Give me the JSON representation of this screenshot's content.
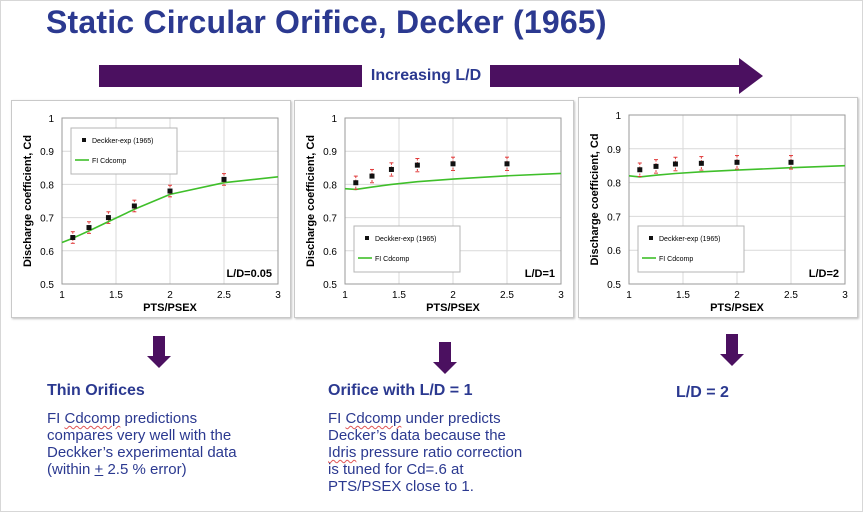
{
  "title": "Static Circular Orifice, Decker (1965)",
  "arrow_label": "Increasing L/D",
  "colors": {
    "title": "#2b3990",
    "arrow": "#4b1060",
    "fit_line": "#3fbf2a",
    "error_bar": "#e03a3a",
    "marker": "#111111"
  },
  "chart_data": [
    {
      "type": "scatter",
      "ylabel": "Discharge coefficient, Cd",
      "xlabel": "PTS/PSEX",
      "xlim": [
        1,
        3
      ],
      "ylim": [
        0.5,
        1
      ],
      "xticks": [
        "1",
        "1.5",
        "2",
        "2.5",
        "3"
      ],
      "yticks": [
        "0.5",
        "0.6",
        "0.7",
        "0.8",
        "0.9",
        "1"
      ],
      "grid": true,
      "legend_placement": "top-left",
      "annotation": "L/D=0.05",
      "series": [
        {
          "name": "Deckker-exp (1965)",
          "kind": "points",
          "x": [
            1.1,
            1.25,
            1.43,
            1.67,
            2.0,
            2.5
          ],
          "y": [
            0.64,
            0.67,
            0.7,
            0.735,
            0.78,
            0.815
          ],
          "error": 0.0175
        },
        {
          "name": "FI Cdcomp",
          "kind": "line",
          "x": [
            1.0,
            1.1,
            1.25,
            1.43,
            1.67,
            2.0,
            2.5,
            3.0
          ],
          "y": [
            0.625,
            0.638,
            0.66,
            0.688,
            0.725,
            0.77,
            0.805,
            0.823
          ]
        }
      ]
    },
    {
      "type": "scatter",
      "ylabel": "Discharge coefficient, Cd",
      "xlabel": "PTS/PSEX",
      "xlim": [
        1,
        3
      ],
      "ylim": [
        0.5,
        1
      ],
      "xticks": [
        "1",
        "1.5",
        "2",
        "2.5",
        "3"
      ],
      "yticks": [
        "0.5",
        "0.6",
        "0.7",
        "0.8",
        "0.9",
        "1"
      ],
      "grid": true,
      "legend_placement": "bottom-left",
      "annotation": "L/D=1",
      "series": [
        {
          "name": "Deckker-exp (1965)",
          "kind": "points",
          "x": [
            1.1,
            1.25,
            1.43,
            1.67,
            2.0,
            2.5
          ],
          "y": [
            0.805,
            0.825,
            0.845,
            0.858,
            0.862,
            0.862
          ],
          "error": 0.02
        },
        {
          "name": "FI Cdcomp",
          "kind": "line",
          "x": [
            1.0,
            1.1,
            1.25,
            1.43,
            1.67,
            2.0,
            2.5,
            3.0
          ],
          "y": [
            0.787,
            0.785,
            0.792,
            0.8,
            0.808,
            0.816,
            0.826,
            0.833
          ]
        }
      ]
    },
    {
      "type": "scatter",
      "ylabel": "Discharge coefficient, Cd",
      "xlabel": "PTS/PSEX",
      "xlim": [
        1,
        3
      ],
      "ylim": [
        0.5,
        1
      ],
      "xticks": [
        "1",
        "1.5",
        "2",
        "2.5",
        "3"
      ],
      "yticks": [
        "0.5",
        "0.6",
        "0.7",
        "0.8",
        "0.9",
        "1"
      ],
      "grid": true,
      "legend_placement": "bottom-left",
      "annotation": "L/D=2",
      "series": [
        {
          "name": "Deckker-exp (1965)",
          "kind": "points",
          "x": [
            1.1,
            1.25,
            1.43,
            1.67,
            2.0,
            2.5
          ],
          "y": [
            0.838,
            0.848,
            0.855,
            0.857,
            0.86,
            0.86
          ],
          "error": 0.02
        },
        {
          "name": "FI Cdcomp",
          "kind": "line",
          "x": [
            1.0,
            1.1,
            1.25,
            1.43,
            1.67,
            2.0,
            2.5,
            3.0
          ],
          "y": [
            0.82,
            0.817,
            0.822,
            0.827,
            0.832,
            0.837,
            0.844,
            0.85
          ]
        }
      ]
    }
  ],
  "notes": [
    {
      "heading": "Thin Orifices",
      "lines": [
        [
          {
            "t": "FI "
          },
          {
            "t": "Cdcomp",
            "s": "wavy"
          },
          {
            "t": " predictions"
          }
        ],
        [
          {
            "t": "compares very well with the"
          }
        ],
        [
          {
            "t": "Deckker’s experimental data"
          }
        ],
        [
          {
            "t": "(within "
          },
          {
            "t": "+",
            "s": "pm"
          },
          {
            "t": " 2.5 % error)"
          }
        ]
      ]
    },
    {
      "heading": "Orifice with L/D = 1",
      "lines": [
        [
          {
            "t": "FI "
          },
          {
            "t": "Cdcomp",
            "s": "wavy"
          },
          {
            "t": " under predicts"
          }
        ],
        [
          {
            "t": "Decker’s data because the"
          }
        ],
        [
          {
            "t": "Idris",
            "s": "wavy"
          },
          {
            "t": " pressure ratio correction"
          }
        ],
        [
          {
            "t": "is tuned for Cd=.6 at"
          }
        ],
        [
          {
            "t": "PTS/PSEX close to 1."
          }
        ]
      ]
    },
    {
      "heading": "L/D = 2",
      "lines": []
    }
  ]
}
